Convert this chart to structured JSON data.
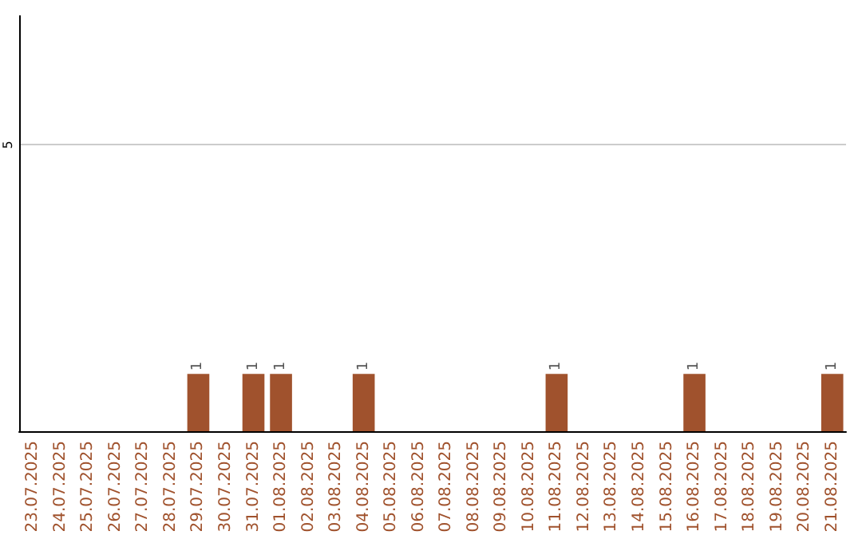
{
  "chart_data": {
    "type": "bar",
    "categories": [
      "23.07.2025",
      "24.07.2025",
      "25.07.2025",
      "26.07.2025",
      "27.07.2025",
      "28.07.2025",
      "29.07.2025",
      "30.07.2025",
      "31.07.2025",
      "01.08.2025",
      "02.08.2025",
      "03.08.2025",
      "04.08.2025",
      "05.08.2025",
      "06.08.2025",
      "07.08.2025",
      "08.08.2025",
      "09.08.2025",
      "10.08.2025",
      "11.08.2025",
      "12.08.2025",
      "13.08.2025",
      "14.08.2025",
      "15.08.2025",
      "16.08.2025",
      "17.08.2025",
      "18.08.2025",
      "19.08.2025",
      "20.08.2025",
      "21.08.2025"
    ],
    "values": [
      0,
      0,
      0,
      0,
      0,
      0,
      1,
      0,
      1,
      1,
      0,
      0,
      1,
      0,
      0,
      0,
      0,
      0,
      0,
      1,
      0,
      0,
      0,
      0,
      1,
      0,
      0,
      0,
      0,
      1
    ],
    "value_labels": [
      null,
      null,
      null,
      null,
      null,
      null,
      "1",
      null,
      "1",
      "1",
      null,
      null,
      "1",
      null,
      null,
      null,
      null,
      null,
      null,
      "1",
      null,
      null,
      null,
      null,
      "1",
      null,
      null,
      null,
      null,
      "1"
    ],
    "color": "#a0522d",
    "ylim": [
      0,
      7.25
    ],
    "yticks": [
      5
    ],
    "grid": "y"
  }
}
